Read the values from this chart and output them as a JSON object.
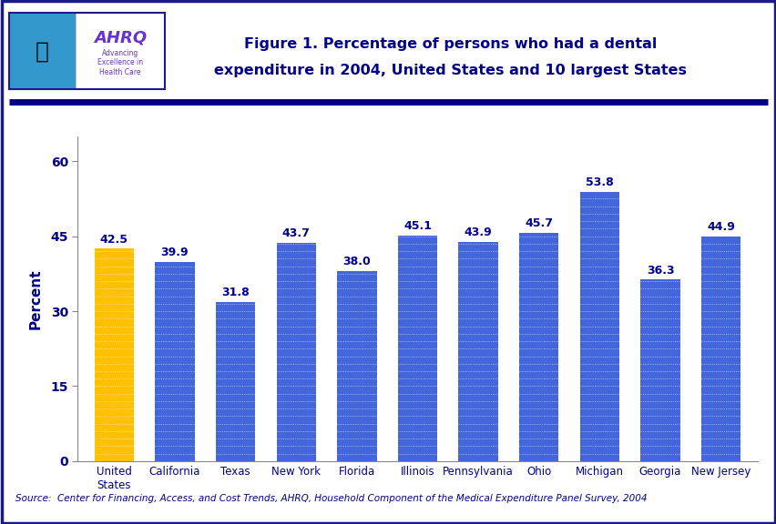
{
  "categories": [
    "United\nStates",
    "California",
    "Texas",
    "New York",
    "Florida",
    "Illinois",
    "Pennsylvania",
    "Ohio",
    "Michigan",
    "Georgia",
    "New Jersey"
  ],
  "values": [
    42.5,
    39.9,
    31.8,
    43.7,
    38.0,
    45.1,
    43.9,
    45.7,
    53.8,
    36.3,
    44.9
  ],
  "bar_colors": [
    "#FFC000",
    "#4466DD",
    "#4466DD",
    "#4466DD",
    "#4466DD",
    "#4466DD",
    "#4466DD",
    "#4466DD",
    "#4466DD",
    "#4466DD",
    "#4466DD"
  ],
  "title_line1": "Figure 1. Percentage of persons who had a dental",
  "title_line2": "expenditure in 2004, United States and 10 largest States",
  "ylabel": "Percent",
  "ylim": [
    0,
    65
  ],
  "yticks": [
    0,
    15,
    30,
    45,
    60
  ],
  "source_text": "Source:  Center for Financing, Access, and Cost Trends, AHRQ, Household Component of the Medical Expenditure Panel Survey, 2004",
  "title_color": "#00008B",
  "bar_label_color": "#00008B",
  "ylabel_color": "#00008B",
  "tick_label_color": "#00008B",
  "source_color": "#00008B",
  "background_color": "#FFFFFF",
  "header_line_color": "#00008B",
  "outer_border_color": "#1a1a8c",
  "logo_bg_left": "#3399CC",
  "logo_bg_right": "#FFFFFF",
  "logo_text_color": "#6633CC",
  "logo_sub_color": "#6633CC"
}
